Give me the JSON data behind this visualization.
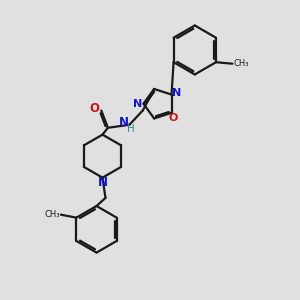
{
  "bg_color": "#e0e0e0",
  "bond_color": "#1a1a1a",
  "nitrogen_color": "#1414cc",
  "oxygen_color": "#cc1414",
  "hydrogen_color": "#3a8a8a",
  "line_width": 1.6,
  "figsize": [
    3.0,
    3.0
  ],
  "dpi": 100,
  "xlim": [
    0,
    10
  ],
  "ylim": [
    0,
    10
  ]
}
